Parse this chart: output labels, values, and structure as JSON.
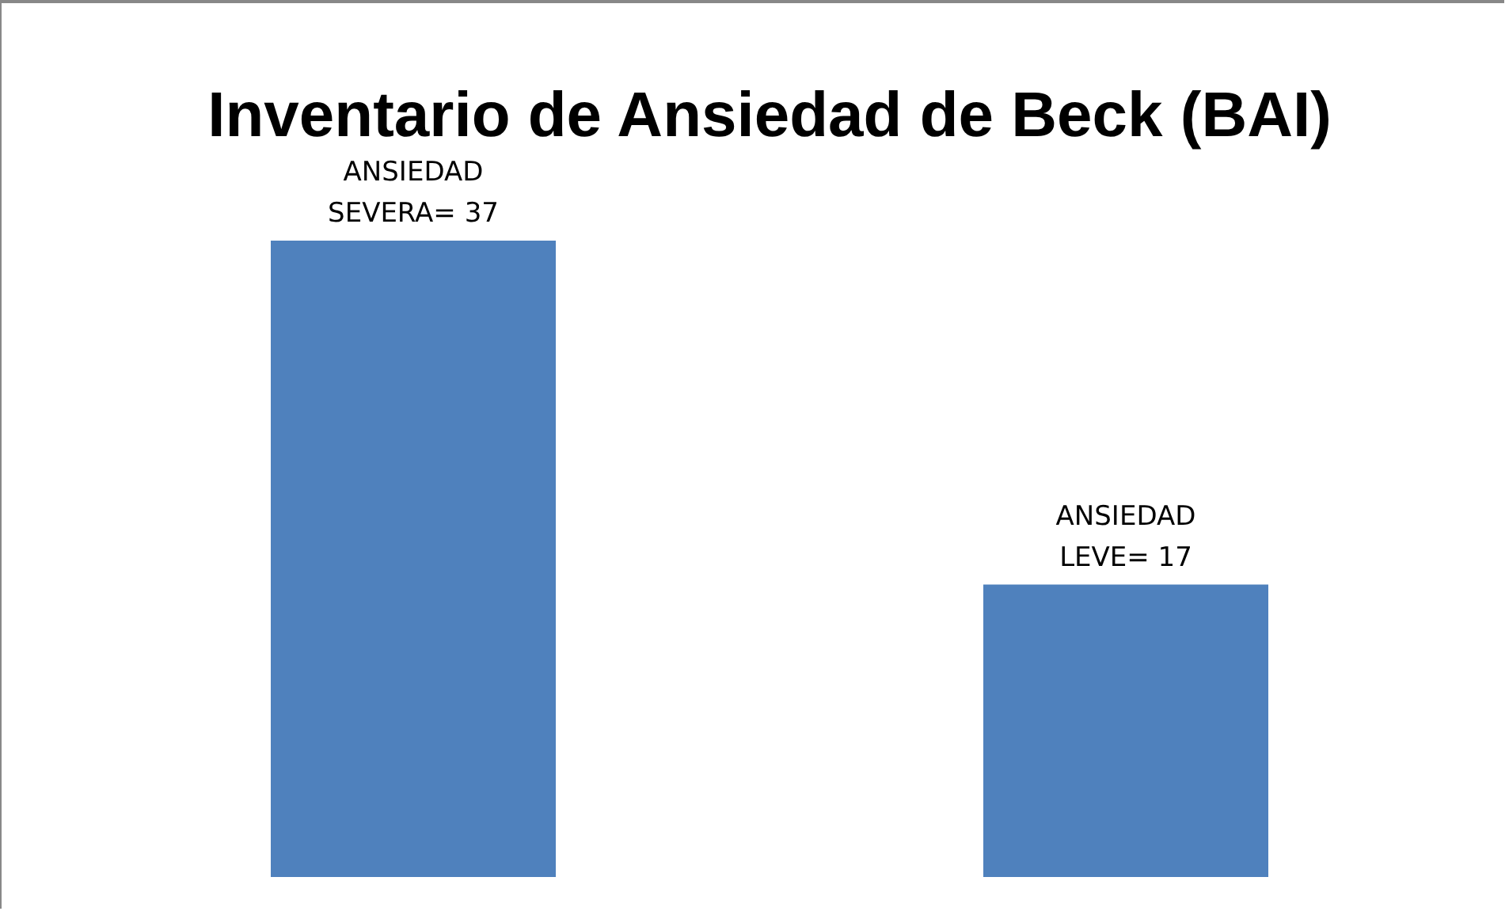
{
  "chart_data": {
    "type": "bar",
    "title": "Inventario de Ansiedad de Beck (BAI)",
    "categories": [
      null,
      null
    ],
    "values": [
      37,
      17
    ],
    "value_labels": [
      "ANSIEDAD SEVERA= 37",
      "ANSIEDAD LEVE= 17"
    ],
    "color": "#4f81bd"
  }
}
